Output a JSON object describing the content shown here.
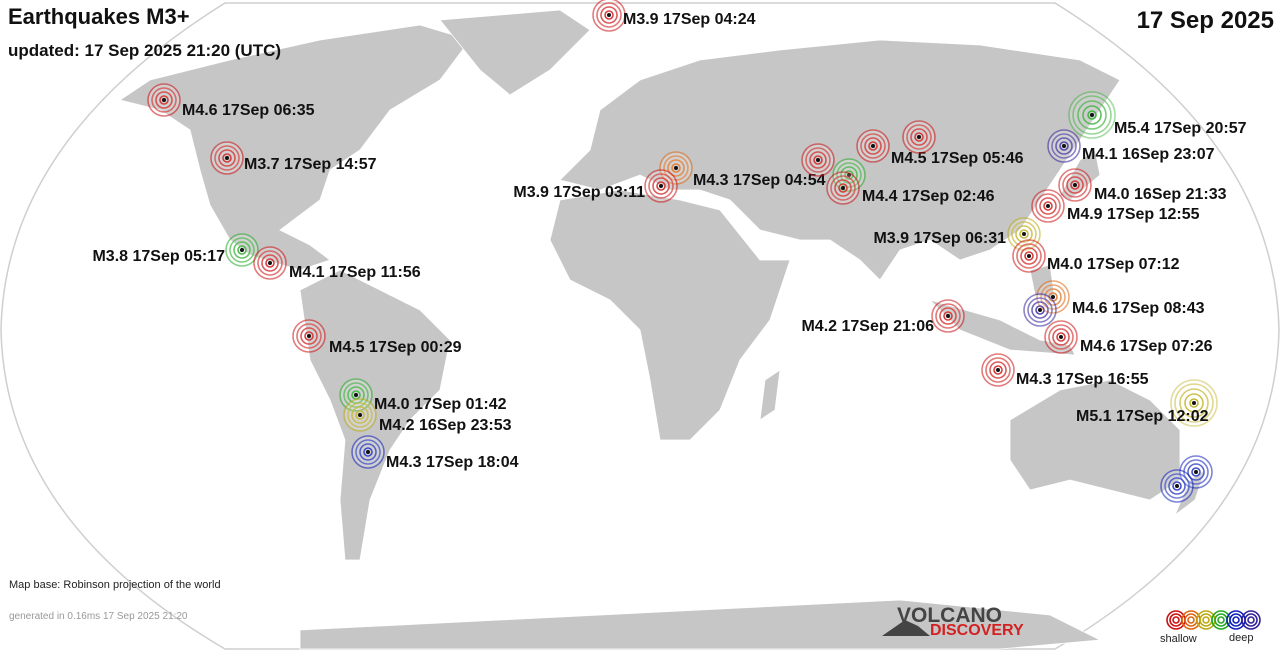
{
  "header": {
    "title": "Earthquakes M3+",
    "updated": "updated: 17 Sep 2025 21:20 (UTC)",
    "date": "17 Sep 2025"
  },
  "quakes": [
    {
      "label": "M3.9 17Sep 04:24",
      "color": "#cc1111"
    },
    {
      "label": "M4.6 17Sep 06:35",
      "color": "#cc1111"
    },
    {
      "label": "M3.7 17Sep 14:57",
      "color": "#cc1111"
    },
    {
      "label": "M3.8 17Sep 05:17",
      "color": "#22aa22"
    },
    {
      "label": "M4.1 17Sep 11:56",
      "color": "#cc1111"
    },
    {
      "label": "M4.5 17Sep 00:29",
      "color": "#cc1111"
    },
    {
      "label": "M4.0 17Sep 01:42",
      "color": "#22aa22"
    },
    {
      "label": "M4.2 16Sep 23:53",
      "color": "#bbaa11"
    },
    {
      "label": "M4.3 17Sep 18:04",
      "color": "#1122bb"
    },
    {
      "label": "M4.3 17Sep 04:54",
      "color": "#dd6611"
    },
    {
      "label": "M3.9 17Sep 03:11",
      "color": "#cc1111"
    },
    {
      "label": null,
      "color": "#cc1111"
    },
    {
      "label": "M4.5 17Sep 05:46",
      "color": "#cc1111"
    },
    {
      "label": null,
      "color": "#cc1111"
    },
    {
      "label": null,
      "color": "#22aa22"
    },
    {
      "label": "M4.4 17Sep 02:46",
      "color": "#cc1111"
    },
    {
      "label": "M5.4 17Sep 20:57",
      "color": "#22aa22"
    },
    {
      "label": "M4.1 16Sep 23:07",
      "color": "#332299"
    },
    {
      "label": "M4.0 16Sep 21:33",
      "color": "#cc1111"
    },
    {
      "label": "M4.9 17Sep 12:55",
      "color": "#cc1111"
    },
    {
      "label": "M3.9 17Sep 06:31",
      "color": "#bbaa11"
    },
    {
      "label": "M4.0 17Sep 07:12",
      "color": "#cc1111"
    },
    {
      "label": "M4.6 17Sep 08:43",
      "color": "#dd6611"
    },
    {
      "label": null,
      "color": "#332299"
    },
    {
      "label": "M4.6 17Sep 07:26",
      "color": "#cc1111"
    },
    {
      "label": "M4.2 17Sep 21:06",
      "color": "#cc1111"
    },
    {
      "label": "M4.3 17Sep 16:55",
      "color": "#cc1111"
    },
    {
      "label": "M5.1 17Sep 12:02",
      "color": "#bbaa11"
    },
    {
      "label": null,
      "color": "#1122bb"
    },
    {
      "label": null,
      "color": "#1122bb"
    }
  ],
  "footer": {
    "map_base": "Map base: Robinson projection of the world",
    "generated": "generated in 0.16ms 17 Sep 2025 21:20"
  },
  "logo": {
    "line1": "VOLCANO",
    "line2": "DISCOVERY"
  },
  "legend": {
    "colors": [
      "#cc1111",
      "#dd6611",
      "#bbaa11",
      "#22aa22",
      "#1122bb",
      "#332299"
    ],
    "shallow": "shallow",
    "deep": "deep"
  }
}
